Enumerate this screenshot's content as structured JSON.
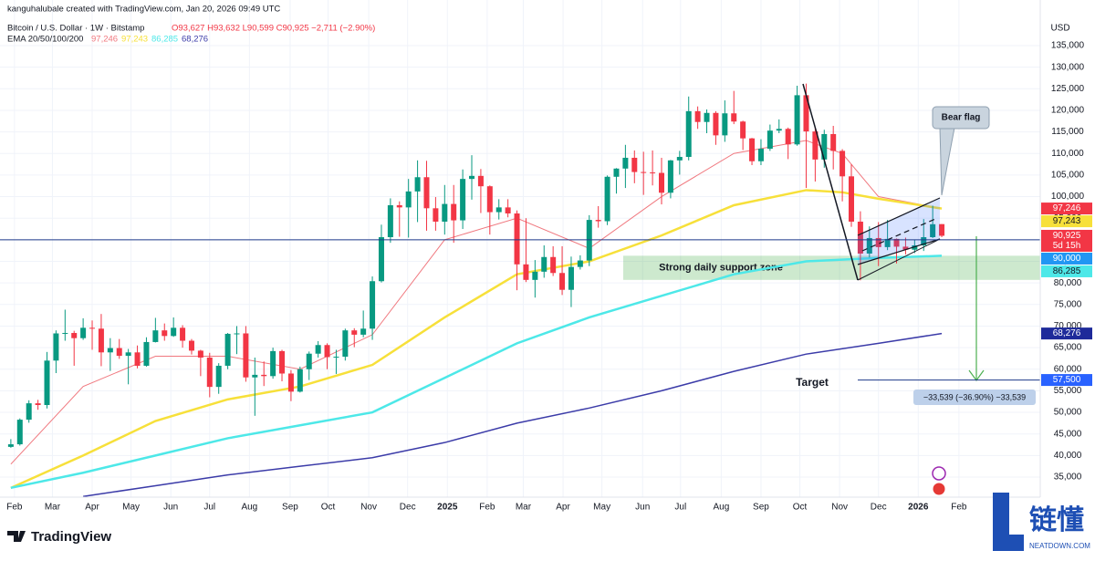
{
  "header": {
    "credit": "kanguhalubale created with TradingView.com, Jan 20, 2026 09:49 UTC",
    "symbol": "Bitcoin / U.S. Dollar · 1W · Bitstamp",
    "ohlc": "O93,627 H93,632 L90,599 C90,925 −2,711 (−2.90%)",
    "ema_title": "EMA 20/50/100/200",
    "ema_values": [
      "97,246",
      "97,243",
      "86,285",
      "68,276"
    ]
  },
  "chart_data": {
    "type": "candlestick",
    "currency": "USD",
    "open": [
      42000,
      42600,
      48300,
      52100,
      51700,
      62000,
      68300,
      68400,
      67200,
      69600,
      69400,
      63900,
      64900,
      63100,
      63900,
      60800,
      66300,
      69000,
      67700,
      69600,
      66600,
      64300,
      62700,
      55900,
      60800,
      68200,
      68300,
      58100,
      58700,
      58400,
      64200,
      59000,
      54800,
      60000,
      63600,
      65600,
      62800,
      62900,
      69000,
      68000,
      69400,
      80400,
      90600,
      98000,
      97500,
      101200,
      104500,
      97300,
      94200,
      98300,
      94500,
      104100,
      104800,
      102400,
      96400,
      97500,
      96100,
      84300,
      80700,
      82600,
      86000,
      82300,
      78400,
      83700,
      85200,
      94600,
      94300,
      104600,
      106500,
      109000,
      105700,
      105600,
      105500,
      100900,
      108400,
      109200,
      119800,
      117300,
      119400,
      114200,
      119300,
      117400,
      113500,
      108200,
      111100,
      115300,
      115700,
      112100,
      123500,
      115100,
      108600,
      114500,
      110600,
      104700,
      94200,
      86800,
      90400,
      88300,
      90200,
      88400,
      87700,
      88700,
      90600,
      93627
    ],
    "high": [
      43800,
      48600,
      52800,
      52900,
      64000,
      69000,
      73800,
      68900,
      71800,
      71300,
      72800,
      67200,
      67000,
      64700,
      65500,
      67400,
      71900,
      70600,
      72000,
      70200,
      67000,
      64500,
      63800,
      61400,
      68400,
      70000,
      70000,
      62700,
      61800,
      65000,
      64500,
      59800,
      60600,
      64100,
      66500,
      66000,
      64500,
      69400,
      69500,
      73600,
      81500,
      93500,
      99600,
      98900,
      104100,
      108400,
      108300,
      99900,
      102700,
      102700,
      106300,
      109600,
      106400,
      102600,
      99400,
      99400,
      96800,
      95000,
      85300,
      88700,
      88500,
      88500,
      86100,
      86400,
      95700,
      97800,
      104900,
      106600,
      112000,
      110700,
      110400,
      110700,
      109000,
      108500,
      110600,
      123200,
      120900,
      120200,
      119800,
      122300,
      124500,
      117600,
      113600,
      113300,
      116700,
      117900,
      116000,
      125700,
      126200,
      116000,
      115500,
      116400,
      111000,
      107500,
      96600,
      93100,
      94100,
      94600,
      90300,
      90500,
      90000,
      94800,
      97900,
      93632
    ],
    "low": [
      41800,
      42300,
      47600,
      50600,
      50900,
      59100,
      66600,
      60800,
      66800,
      64500,
      60700,
      59600,
      62400,
      56500,
      60200,
      60600,
      66200,
      66600,
      67500,
      65000,
      63400,
      58400,
      53500,
      54300,
      60000,
      63500,
      57100,
      49200,
      56100,
      57800,
      57200,
      52600,
      54600,
      57500,
      62700,
      60000,
      58900,
      62000,
      65100,
      67400,
      66800,
      80100,
      89300,
      90700,
      90500,
      94100,
      92100,
      92100,
      91200,
      89300,
      92500,
      99300,
      96200,
      91200,
      94700,
      95200,
      78300,
      80200,
      76600,
      81200,
      81600,
      77200,
      74400,
      83100,
      83900,
      92800,
      93400,
      100700,
      102000,
      103100,
      100400,
      102600,
      98200,
      99600,
      105100,
      108400,
      115700,
      114700,
      112000,
      112700,
      116800,
      110800,
      107300,
      107300,
      110600,
      114700,
      108700,
      111800,
      102000,
      103500,
      106700,
      106300,
      98900,
      93000,
      80600,
      85900,
      83900,
      87600,
      84500,
      86600,
      86900,
      87400,
      90400,
      90599
    ],
    "close": [
      42600,
      48300,
      52100,
      51700,
      62000,
      68300,
      68400,
      67200,
      69600,
      69400,
      63900,
      64900,
      63100,
      63900,
      60800,
      66300,
      69000,
      67700,
      69600,
      66600,
      64300,
      62700,
      55900,
      60800,
      68200,
      68300,
      58100,
      58700,
      58400,
      64200,
      59000,
      54800,
      60000,
      63600,
      65600,
      62800,
      62900,
      69000,
      68000,
      69400,
      80400,
      90600,
      98000,
      97500,
      101200,
      104500,
      97300,
      94200,
      98300,
      94500,
      104100,
      104800,
      102400,
      96400,
      97500,
      96100,
      84300,
      80700,
      82600,
      86000,
      82300,
      78400,
      83700,
      85200,
      94600,
      94300,
      104600,
      106500,
      109000,
      105700,
      105600,
      105500,
      100900,
      108400,
      109200,
      119800,
      117300,
      119400,
      114200,
      119300,
      117400,
      113500,
      108200,
      111100,
      115300,
      115700,
      112100,
      123500,
      115100,
      108600,
      114500,
      110600,
      104700,
      94200,
      86800,
      90400,
      88300,
      90200,
      88400,
      87700,
      88700,
      90600,
      93600,
      90925
    ],
    "up_color": "#089981",
    "down_color": "#f23645",
    "series": [
      {
        "name": "EMA 20",
        "color": "#f0787f",
        "width": 1,
        "x": [
          0,
          8,
          16,
          24,
          32,
          40,
          48,
          56,
          64,
          72,
          80,
          88,
          92,
          96,
          103
        ],
        "values": [
          38000,
          56000,
          63000,
          63000,
          60000,
          68000,
          90000,
          95000,
          88000,
          100000,
          110000,
          113000,
          110000,
          100000,
          97246
        ]
      },
      {
        "name": "EMA 50",
        "color": "#f7e03a",
        "width": 2.5,
        "x": [
          0,
          8,
          16,
          24,
          32,
          40,
          48,
          56,
          64,
          72,
          80,
          88,
          92,
          96,
          103
        ],
        "values": [
          32500,
          40000,
          48000,
          53000,
          56000,
          61000,
          72000,
          82000,
          85000,
          91000,
          98000,
          101500,
          101000,
          99500,
          97243
        ]
      },
      {
        "name": "EMA 100",
        "color": "#4de8e8",
        "width": 2.5,
        "x": [
          0,
          8,
          16,
          24,
          32,
          40,
          48,
          56,
          64,
          72,
          80,
          88,
          96,
          103
        ],
        "values": [
          32500,
          36000,
          40000,
          44000,
          47000,
          50000,
          58000,
          66000,
          72000,
          77000,
          82000,
          85000,
          85800,
          86285
        ]
      },
      {
        "name": "EMA 200",
        "color": "#3b3ba8",
        "width": 1.5,
        "x": [
          8,
          16,
          24,
          32,
          40,
          48,
          56,
          64,
          72,
          80,
          88,
          96,
          103
        ],
        "values": [
          30500,
          33000,
          35500,
          37500,
          39500,
          43000,
          47500,
          51000,
          55000,
          59500,
          63500,
          66000,
          68276
        ]
      }
    ],
    "xlim": [
      -1.2,
      113.9
    ],
    "xticks": [
      {
        "value": 0.4,
        "label": "Feb"
      },
      {
        "value": 4.6,
        "label": "Mar"
      },
      {
        "value": 9.0,
        "label": "Apr"
      },
      {
        "value": 13.3,
        "label": "May"
      },
      {
        "value": 17.7,
        "label": "Jun"
      },
      {
        "value": 22.0,
        "label": "Jul"
      },
      {
        "value": 26.4,
        "label": "Aug"
      },
      {
        "value": 30.9,
        "label": "Sep"
      },
      {
        "value": 35.1,
        "label": "Oct"
      },
      {
        "value": 39.6,
        "label": "Nov"
      },
      {
        "value": 43.9,
        "label": "Dec"
      },
      {
        "value": 48.3,
        "label": "2025"
      },
      {
        "value": 52.7,
        "label": "Feb"
      },
      {
        "value": 56.7,
        "label": "Mar"
      },
      {
        "value": 61.1,
        "label": "Apr"
      },
      {
        "value": 65.4,
        "label": "May"
      },
      {
        "value": 69.9,
        "label": "Jun"
      },
      {
        "value": 74.1,
        "label": "Jul"
      },
      {
        "value": 78.6,
        "label": "Aug"
      },
      {
        "value": 83.0,
        "label": "Sep"
      },
      {
        "value": 87.3,
        "label": "Oct"
      },
      {
        "value": 91.7,
        "label": "Nov"
      },
      {
        "value": 96.0,
        "label": "Dec"
      },
      {
        "value": 100.4,
        "label": "2026"
      },
      {
        "value": 104.9,
        "label": "Feb"
      }
    ],
    "ylim": [
      30350,
      141340
    ],
    "yticks": [
      {
        "value": 35000,
        "label": "35,000"
      },
      {
        "value": 40000,
        "label": "40,000"
      },
      {
        "value": 45000,
        "label": "45,000"
      },
      {
        "value": 50000,
        "label": "50,000"
      },
      {
        "value": 55000,
        "label": "55,000"
      },
      {
        "value": 60000,
        "label": "60,000"
      },
      {
        "value": 65000,
        "label": "65,000"
      },
      {
        "value": 70000,
        "label": "70,000"
      },
      {
        "value": 75000,
        "label": "75,000"
      },
      {
        "value": 80000,
        "label": "80,000"
      },
      {
        "value": 85000,
        "label": "85,000"
      },
      {
        "value": 90000,
        "label": "90,000"
      },
      {
        "value": 95000,
        "label": "95,000"
      },
      {
        "value": 100000,
        "label": "100,000"
      },
      {
        "value": 105000,
        "label": "105,000"
      },
      {
        "value": 110000,
        "label": "110,000"
      },
      {
        "value": 115000,
        "label": "115,000"
      },
      {
        "value": 120000,
        "label": "120,000"
      },
      {
        "value": 125000,
        "label": "125,000"
      },
      {
        "value": 130000,
        "label": "130,000"
      },
      {
        "value": 135000,
        "label": "135,000"
      }
    ],
    "grid": true,
    "price_labels": [
      {
        "value": 97246,
        "label": "97,246",
        "color": "#f23645",
        "text_color": "#ffffff"
      },
      {
        "value": 97243,
        "label": "97,243",
        "color": "#f7e03a",
        "text_color": "#131722"
      },
      {
        "value": 90925,
        "label": "90,925",
        "color": "#f23645",
        "text_color": "#ffffff",
        "countdown": "5d 15h"
      },
      {
        "value": 90000,
        "label": "90,000",
        "color": "#2196f3",
        "text_color": "#ffffff"
      },
      {
        "value": 86285,
        "label": "86,285",
        "color": "#4de8e8",
        "text_color": "#131722"
      },
      {
        "value": 68276,
        "label": "68,276",
        "color": "#1e2a9a",
        "text_color": "#ffffff"
      },
      {
        "value": 57500,
        "label": "57,500",
        "color": "#2962ff",
        "text_color": "#ffffff"
      }
    ],
    "support_zone": {
      "label": "Strong daily support zone",
      "range": [
        80700,
        86300
      ]
    },
    "annotations": {
      "bear_flag": "Bear flag",
      "target": "Target",
      "measure": "−33,539 (−36.90%) −33,539"
    }
  },
  "footer": {
    "logo": "TradingView",
    "watermark": "链懂",
    "watermark_url": "NEATDOWN.COM"
  }
}
